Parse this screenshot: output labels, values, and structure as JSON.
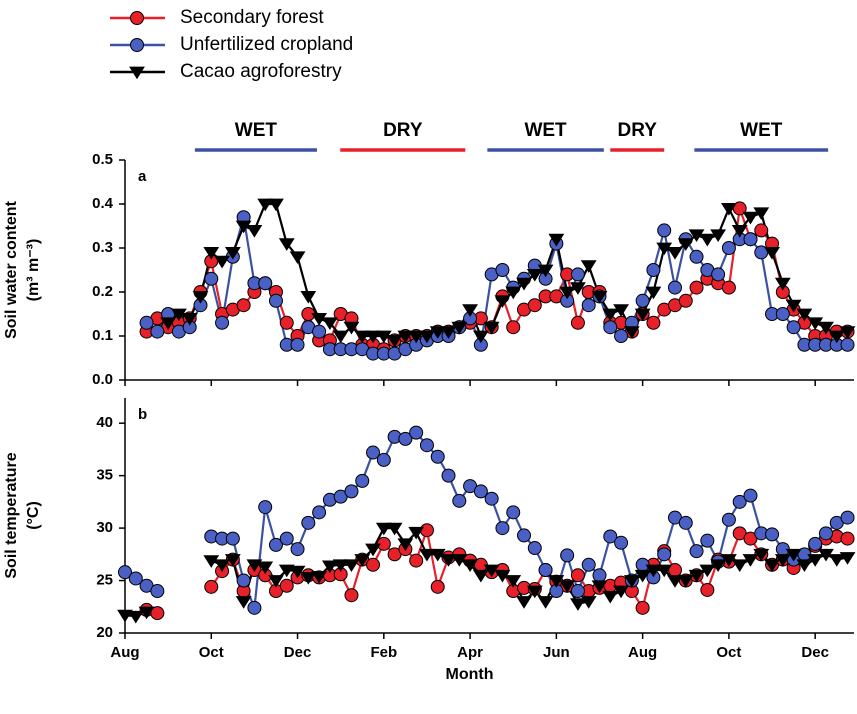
{
  "chart_data": [
    {
      "type": "line",
      "panel_label": "a",
      "y_label": [
        "Soil water content",
        "(m³ m⁻³)"
      ],
      "legend": true,
      "seasons": [
        {
          "label": "WET",
          "start": 1.62,
          "end": 4.45,
          "color": "#3b52a3"
        },
        {
          "label": "DRY",
          "start": 4.99,
          "end": 7.89,
          "color": "#e8202a"
        },
        {
          "label": "WET",
          "start": 8.4,
          "end": 11.1,
          "color": "#3b52a3"
        },
        {
          "label": "DRY",
          "start": 11.25,
          "end": 12.5,
          "color": "#e8202a"
        },
        {
          "label": "WET",
          "start": 13.2,
          "end": 16.3,
          "color": "#3b52a3"
        }
      ],
      "x": [
        0,
        0.25,
        0.5,
        0.75,
        1,
        1.25,
        1.5,
        1.75,
        2,
        2.25,
        2.5,
        2.75,
        3,
        3.25,
        3.5,
        3.75,
        4,
        4.25,
        4.5,
        4.75,
        5,
        5.25,
        5.5,
        5.75,
        6,
        6.25,
        6.5,
        6.75,
        7,
        7.25,
        7.5,
        7.75,
        8,
        8.25,
        8.5,
        8.75,
        9,
        9.25,
        9.5,
        9.75,
        10,
        10.25,
        10.5,
        10.75,
        11,
        11.25,
        11.5,
        11.75,
        12,
        12.25,
        12.5,
        12.75,
        13,
        13.25,
        13.5,
        13.75,
        14,
        14.25,
        14.5,
        14.75,
        15,
        15.25,
        15.5,
        15.75,
        16,
        16.25,
        16.5,
        16.75
      ],
      "xlim": [
        0,
        16.9
      ],
      "ylim": [
        0,
        0.5
      ],
      "yticks": [
        {
          "value": 0,
          "label": "0.0"
        },
        0.1,
        0.2,
        0.3,
        0.4,
        0.5
      ],
      "series": [
        {
          "name": "Secondary forest",
          "color": "#e8202a",
          "marker": "circle",
          "values": [
            null,
            null,
            0.11,
            0.14,
            0.12,
            0.13,
            0.14,
            0.2,
            0.27,
            0.15,
            0.16,
            0.17,
            0.2,
            0.22,
            0.2,
            0.13,
            0.1,
            0.15,
            0.09,
            0.09,
            0.15,
            0.14,
            0.08,
            0.08,
            0.07,
            0.09,
            0.1,
            0.1,
            0.1,
            0.11,
            0.11,
            0.12,
            0.13,
            0.14,
            0.12,
            0.19,
            0.12,
            0.16,
            0.17,
            0.19,
            0.19,
            0.24,
            0.13,
            0.2,
            0.2,
            0.13,
            0.13,
            0.11,
            0.15,
            0.13,
            0.16,
            0.17,
            0.18,
            0.21,
            0.23,
            0.22,
            0.21,
            0.39,
            0.32,
            0.34,
            0.31,
            0.2,
            0.16,
            0.13,
            0.1,
            0.1,
            0.11,
            0.11
          ]
        },
        {
          "name": "Unfertilized cropland",
          "color": "#3b52a3",
          "marker": "circle",
          "values": [
            null,
            null,
            0.13,
            0.11,
            0.15,
            0.11,
            0.12,
            0.17,
            0.23,
            0.13,
            0.28,
            0.37,
            0.22,
            0.22,
            0.18,
            0.08,
            0.08,
            0.12,
            0.11,
            0.07,
            0.07,
            0.07,
            0.07,
            0.06,
            0.06,
            0.06,
            0.07,
            0.08,
            0.09,
            0.1,
            0.1,
            0.12,
            0.14,
            0.08,
            0.24,
            0.25,
            0.21,
            0.23,
            0.26,
            0.23,
            0.31,
            0.18,
            0.24,
            0.17,
            0.19,
            0.12,
            0.1,
            0.13,
            0.18,
            0.25,
            0.34,
            0.21,
            0.32,
            0.28,
            0.25,
            0.24,
            0.3,
            0.32,
            0.32,
            0.29,
            0.15,
            0.15,
            0.12,
            0.08,
            0.08,
            0.08,
            0.08,
            0.08
          ]
        },
        {
          "name": "Cacao agroforestry",
          "color": "#000000",
          "marker": "triangle-down",
          "values": [
            null,
            null,
            null,
            null,
            0.13,
            0.15,
            0.14,
            0.19,
            0.29,
            0.27,
            0.29,
            0.35,
            0.34,
            0.4,
            0.4,
            0.31,
            0.28,
            0.19,
            0.14,
            0.13,
            0.1,
            0.12,
            0.1,
            0.1,
            0.1,
            0.09,
            0.1,
            0.1,
            0.1,
            0.11,
            0.11,
            0.12,
            0.16,
            0.1,
            0.12,
            0.18,
            0.2,
            0.22,
            0.24,
            0.25,
            0.32,
            0.2,
            0.21,
            0.26,
            0.19,
            0.15,
            0.16,
            0.11,
            0.15,
            0.2,
            0.3,
            0.29,
            0.31,
            0.33,
            0.32,
            0.33,
            0.39,
            0.34,
            0.37,
            0.38,
            0.29,
            0.22,
            0.17,
            0.15,
            0.13,
            0.12,
            0.1,
            0.11
          ]
        }
      ]
    },
    {
      "type": "line",
      "panel_label": "b",
      "y_label": [
        "Soil temperature",
        "(°C)"
      ],
      "x_label": "Month",
      "x": [
        0,
        0.25,
        0.5,
        0.75,
        1,
        1.25,
        1.5,
        1.75,
        2,
        2.25,
        2.5,
        2.75,
        3,
        3.25,
        3.5,
        3.75,
        4,
        4.25,
        4.5,
        4.75,
        5,
        5.25,
        5.5,
        5.75,
        6,
        6.25,
        6.5,
        6.75,
        7,
        7.25,
        7.5,
        7.75,
        8,
        8.25,
        8.5,
        8.75,
        9,
        9.25,
        9.5,
        9.75,
        10,
        10.25,
        10.5,
        10.75,
        11,
        11.25,
        11.5,
        11.75,
        12,
        12.25,
        12.5,
        12.75,
        13,
        13.25,
        13.5,
        13.75,
        14,
        14.25,
        14.5,
        14.75,
        15,
        15.25,
        15.5,
        15.75,
        16,
        16.25,
        16.5,
        16.75
      ],
      "xlim": [
        0,
        16.9
      ],
      "ylim": [
        20,
        42.4
      ],
      "xticks": [
        {
          "value": 0,
          "label": "Aug"
        },
        {
          "value": 2,
          "label": "Oct"
        },
        {
          "value": 4,
          "label": "Dec"
        },
        {
          "value": 6,
          "label": "Feb"
        },
        {
          "value": 8,
          "label": "Apr"
        },
        {
          "value": 10,
          "label": "Jun"
        },
        {
          "value": 12,
          "label": "Aug"
        },
        {
          "value": 14,
          "label": "Oct"
        },
        {
          "value": 16,
          "label": "Dec"
        }
      ],
      "yticks": [
        20,
        25,
        30,
        35,
        40
      ],
      "series": [
        {
          "name": "Secondary forest",
          "color": "#e8202a",
          "marker": "circle",
          "values": [
            null,
            null,
            22.2,
            21.9,
            null,
            null,
            null,
            null,
            24.4,
            25.9,
            27.0,
            24.0,
            26.0,
            25.5,
            24.0,
            24.5,
            25.3,
            25.5,
            25.3,
            25.5,
            25.6,
            23.6,
            27.0,
            26.5,
            28.5,
            27.5,
            28.0,
            26.9,
            29.8,
            24.4,
            27.2,
            27.5,
            26.9,
            26.5,
            25.8,
            26.0,
            24.0,
            24.3,
            24.2,
            26.0,
            24.9,
            24.5,
            25.5,
            24.0,
            24.3,
            24.5,
            24.8,
            24.0,
            22.4,
            26.5,
            27.8,
            26.0,
            25.0,
            25.5,
            24.1,
            27.0,
            26.8,
            29.5,
            29.0,
            27.5,
            26.5,
            27.0,
            26.2,
            27.0,
            28.3,
            29.0,
            29.2,
            29.0
          ]
        },
        {
          "name": "Unfertilized cropland",
          "color": "#3b52a3",
          "marker": "circle",
          "values": [
            25.8,
            25.2,
            24.5,
            24.0,
            null,
            null,
            null,
            null,
            29.2,
            29.0,
            29.0,
            25.0,
            22.4,
            32.0,
            28.4,
            29.0,
            28.0,
            30.5,
            31.5,
            32.7,
            33.0,
            33.5,
            34.5,
            37.2,
            36.5,
            38.7,
            38.5,
            39.1,
            37.9,
            36.8,
            35.0,
            32.6,
            34.0,
            33.5,
            32.8,
            30.0,
            31.5,
            29.3,
            28.1,
            26.0,
            24.0,
            27.4,
            24.0,
            26.5,
            25.5,
            29.2,
            28.6,
            25.0,
            26.5,
            25.3,
            27.5,
            31.0,
            30.5,
            27.8,
            28.8,
            26.8,
            30.8,
            32.5,
            33.1,
            29.5,
            29.4,
            28.0,
            27.0,
            27.5,
            28.5,
            29.5,
            30.5,
            31.0
          ]
        },
        {
          "name": "Cacao agroforestry",
          "color": "#000000",
          "marker": "triangle-down",
          "values": [
            21.7,
            21.6,
            22.0,
            null,
            null,
            null,
            null,
            null,
            26.9,
            26.5,
            27.0,
            23.0,
            26.5,
            26.3,
            25.0,
            26.0,
            25.9,
            25.3,
            25.4,
            26.4,
            26.5,
            26.5,
            27.0,
            28.0,
            30.0,
            30.0,
            28.5,
            29.6,
            27.5,
            27.5,
            27.0,
            27.0,
            26.5,
            25.5,
            26.0,
            25.5,
            25.0,
            23.0,
            24.0,
            23.0,
            25.0,
            24.5,
            22.8,
            23.0,
            24.5,
            23.5,
            24.0,
            25.0,
            25.5,
            26.0,
            26.0,
            25.0,
            25.0,
            25.5,
            26.0,
            26.5,
            27.0,
            26.5,
            27.0,
            27.5,
            26.5,
            27.0,
            27.5,
            26.5,
            27.0,
            27.5,
            27.0,
            27.2
          ]
        }
      ]
    }
  ]
}
